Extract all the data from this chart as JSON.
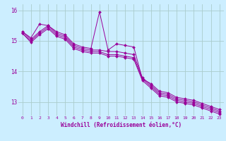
{
  "title": "",
  "xlabel": "Windchill (Refroidissement éolien,°C)",
  "ylabel": "",
  "bg_color": "#cceeff",
  "grid_color": "#aacccc",
  "line_color": "#990099",
  "xlim": [
    -0.5,
    23.5
  ],
  "ylim": [
    12.55,
    16.2
  ],
  "xticks": [
    0,
    1,
    2,
    3,
    4,
    5,
    6,
    7,
    8,
    9,
    10,
    11,
    12,
    13,
    14,
    15,
    16,
    17,
    18,
    19,
    20,
    21,
    22,
    23
  ],
  "yticks": [
    13,
    14,
    15,
    16
  ],
  "series": [
    [
      15.3,
      15.1,
      15.55,
      15.5,
      15.3,
      15.2,
      14.9,
      14.8,
      14.75,
      15.95,
      14.7,
      14.9,
      14.85,
      14.8,
      13.75,
      13.6,
      13.35,
      13.3,
      13.15,
      13.1,
      13.05,
      12.95,
      12.85,
      12.75
    ],
    [
      15.3,
      15.05,
      15.3,
      15.5,
      15.25,
      15.15,
      14.85,
      14.75,
      14.7,
      14.7,
      14.65,
      14.65,
      14.6,
      14.55,
      13.8,
      13.55,
      13.3,
      13.25,
      13.1,
      13.05,
      13.0,
      12.9,
      12.8,
      12.7
    ],
    [
      15.25,
      15.0,
      15.25,
      15.45,
      15.2,
      15.1,
      14.8,
      14.7,
      14.65,
      14.65,
      14.55,
      14.55,
      14.5,
      14.45,
      13.75,
      13.5,
      13.25,
      13.2,
      13.05,
      13.0,
      12.95,
      12.85,
      12.75,
      12.65
    ],
    [
      15.25,
      14.95,
      15.2,
      15.4,
      15.15,
      15.05,
      14.75,
      14.65,
      14.6,
      14.6,
      14.5,
      14.5,
      14.45,
      14.4,
      13.7,
      13.45,
      13.2,
      13.15,
      13.0,
      12.95,
      12.9,
      12.8,
      12.7,
      12.6
    ]
  ]
}
